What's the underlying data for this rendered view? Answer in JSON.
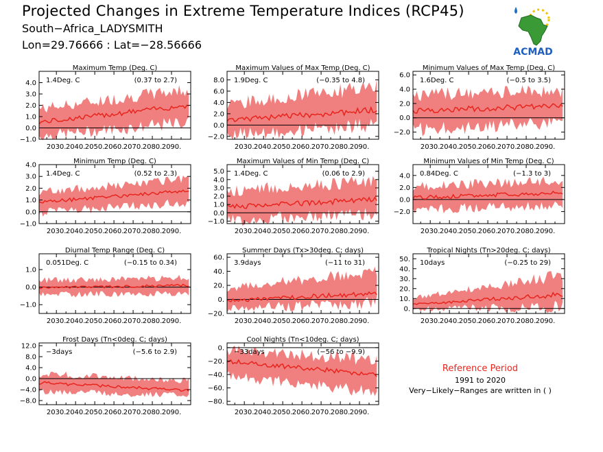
{
  "header": {
    "title": "Projected Changes in Extreme Temperature Indices (RCP45)",
    "location": "South−Africa_LADYSMITH",
    "coords": "Lon=29.76666 : Lat=−28.56666"
  },
  "logo": {
    "text": "ACMAD",
    "icon": "africa-map-logo"
  },
  "reference": {
    "title": "Reference Period",
    "period": "1991 to 2020",
    "note": "Very−Likely−Ranges are written in ( )"
  },
  "colors": {
    "band": "#f08080",
    "line": "#e8241c",
    "zero": "#000000",
    "title": "#e8241c"
  },
  "chart_data": [
    {
      "type": "area",
      "title": "Maximum Temp (Deg. C)",
      "mean_label": "1.4Deg. C",
      "range_label": "(0.37 to 2.7)",
      "xlim": [
        2021,
        2100
      ],
      "ylim": [
        -1,
        5
      ],
      "yticks": [
        "4.0",
        "3.0",
        "2.0",
        "1.0",
        "0.0",
        "−1.0"
      ],
      "ytick_values": [
        4,
        3,
        2,
        1,
        0,
        -1
      ],
      "xticks": [
        "2030.",
        "2040.",
        "2050.",
        "2060.",
        "2070.",
        "2080.",
        "2090."
      ],
      "series": {
        "start": 0.5,
        "end": 2.0,
        "low_start": -0.6,
        "low_end": 0.6,
        "high_start": 1.6,
        "high_end": 3.3
      }
    },
    {
      "type": "area",
      "title": "Maximum Values of Max Temp (Deg. C)",
      "mean_label": "1.9Deg. C",
      "range_label": "(−0.35 to 4.8)",
      "xlim": [
        2021,
        2100
      ],
      "ylim": [
        -2.5,
        9.5
      ],
      "yticks": [
        "8.0",
        "6.0",
        "4.0",
        "2.0",
        "0.0",
        "−2.0"
      ],
      "ytick_values": [
        8,
        6,
        4,
        2,
        0,
        -2
      ],
      "xticks": [
        "2030.",
        "2040.",
        "2050.",
        "2060.",
        "2070.",
        "2080.",
        "2090."
      ],
      "series": {
        "start": 0.8,
        "end": 2.7,
        "low_start": -1.5,
        "low_end": 0.2,
        "high_start": 3.5,
        "high_end": 6.5
      }
    },
    {
      "type": "area",
      "title": "Minimum Values of Max Temp (Deg. C)",
      "mean_label": "1.6Deg. C",
      "range_label": "(−0.5 to 3.5)",
      "xlim": [
        2021,
        2100
      ],
      "ylim": [
        -3,
        6.5
      ],
      "yticks": [
        "6.0",
        "4.0",
        "2.0",
        "0.0",
        "−2.0"
      ],
      "ytick_values": [
        6,
        4,
        2,
        0,
        -2
      ],
      "xticks": [
        "2030.",
        "2040.",
        "2050.",
        "2060.",
        "2070.",
        "2080.",
        "2090."
      ],
      "series": {
        "start": 1.0,
        "end": 1.7,
        "low_start": -1.5,
        "low_end": -0.5,
        "high_start": 3.0,
        "high_end": 3.6
      }
    },
    {
      "type": "area",
      "title": "Minimum Temp (Deg. C)",
      "mean_label": "1.4Deg. C",
      "range_label": "(0.52 to 2.3)",
      "xlim": [
        2021,
        2100
      ],
      "ylim": [
        -1,
        4
      ],
      "yticks": [
        "4.0",
        "3.0",
        "2.0",
        "1.0",
        "0.0",
        "−1.0"
      ],
      "ytick_values": [
        4,
        3,
        2,
        1,
        0,
        -1
      ],
      "xticks": [
        "2030.",
        "2040.",
        "2050.",
        "2060.",
        "2070.",
        "2080.",
        "2090."
      ],
      "series": {
        "start": 0.8,
        "end": 1.8,
        "low_start": 0.0,
        "low_end": 0.9,
        "high_start": 1.6,
        "high_end": 2.7
      }
    },
    {
      "type": "area",
      "title": "Maximum Values of Min Temp (Deg. C)",
      "mean_label": "1.4Deg. C",
      "range_label": "(0.06 to 2.9)",
      "xlim": [
        2021,
        2100
      ],
      "ylim": [
        -1.3,
        5.8
      ],
      "yticks": [
        "5.0",
        "4.0",
        "3.0",
        "2.0",
        "1.0",
        "0.0",
        "−1.0"
      ],
      "ytick_values": [
        5,
        4,
        3,
        2,
        1,
        0,
        -1
      ],
      "xticks": [
        "2030.",
        "2040.",
        "2050.",
        "2060.",
        "2070.",
        "2080.",
        "2090."
      ],
      "series": {
        "start": 0.7,
        "end": 1.6,
        "low_start": -0.8,
        "low_end": 0.1,
        "high_start": 2.5,
        "high_end": 3.7
      }
    },
    {
      "type": "area",
      "title": "Minimum Values of Min Temp (Deg. C)",
      "mean_label": "0.84Deg. C",
      "range_label": "(−1.3 to 3)",
      "xlim": [
        2021,
        2100
      ],
      "ylim": [
        -4,
        5.8
      ],
      "yticks": [
        "4.0",
        "2.0",
        "0.0",
        "−2.0"
      ],
      "ytick_values": [
        4,
        2,
        0,
        -2
      ],
      "xticks": [
        "2030.",
        "2040.",
        "2050.",
        "2060.",
        "2070.",
        "2080.",
        "2090."
      ],
      "series": {
        "start": 0.3,
        "end": 1.1,
        "low_start": -1.5,
        "low_end": -0.8,
        "high_start": 2.0,
        "high_end": 3.0
      }
    },
    {
      "type": "area",
      "title": "Diurnal Temp Range (Deg. C)",
      "mean_label": "0.051Deg. C",
      "range_label": "(−0.15 to 0.34)",
      "xlim": [
        2021,
        2100
      ],
      "ylim": [
        -1.5,
        1.9
      ],
      "yticks": [
        "1.0",
        "0.0",
        "−1.0"
      ],
      "ytick_values": [
        1,
        0,
        -1
      ],
      "xticks": [
        "2030.",
        "2040.",
        "2050.",
        "2060.",
        "2070.",
        "2080.",
        "2090."
      ],
      "series": {
        "start": -0.05,
        "end": 0.1,
        "low_start": -0.4,
        "low_end": -0.3,
        "high_start": 0.35,
        "high_end": 0.5
      }
    },
    {
      "type": "area",
      "title": "Summer Days (Tx>30deg. C; days)",
      "mean_label": "3.9days",
      "range_label": "(−11 to 31)",
      "xlim": [
        2021,
        2100
      ],
      "ylim": [
        -20,
        65
      ],
      "yticks": [
        "60.",
        "40.",
        "20.",
        "0.",
        "−20."
      ],
      "ytick_values": [
        60,
        40,
        20,
        0,
        -20
      ],
      "xticks": [
        "2030.",
        "2040.",
        "2050.",
        "2060.",
        "2070.",
        "2080.",
        "2090."
      ],
      "series": {
        "start": -2,
        "end": 9,
        "low_start": -12,
        "low_end": -3,
        "high_start": 15,
        "high_end": 38
      }
    },
    {
      "type": "area",
      "title": "Tropical Nights (Tn>20deg. C; days)",
      "mean_label": "10days",
      "range_label": "(−0.25 to 29)",
      "xlim": [
        2021,
        2100
      ],
      "ylim": [
        -5,
        55
      ],
      "yticks": [
        "50.",
        "40.",
        "30.",
        "20.",
        "10.",
        "0."
      ],
      "ytick_values": [
        50,
        40,
        30,
        20,
        10,
        0
      ],
      "xticks": [
        "2030.",
        "2040.",
        "2050.",
        "2060.",
        "2070.",
        "2080.",
        "2090."
      ],
      "series": {
        "start": 4,
        "end": 14,
        "low_start": 0,
        "low_end": 3,
        "high_start": 10,
        "high_end": 32
      }
    },
    {
      "type": "area",
      "title": "Frost Days (Tn<0deg. C; days)",
      "mean_label": "−3days",
      "range_label": "(−5.6 to 2.9)",
      "xlim": [
        2021,
        2100
      ],
      "ylim": [
        -9.5,
        13
      ],
      "yticks": [
        "12.0",
        "8.0",
        "4.0",
        "0.0",
        "−4.0",
        "−8.0"
      ],
      "ytick_values": [
        12,
        8,
        4,
        0,
        -4,
        -8
      ],
      "xticks": [
        "2030.",
        "2040.",
        "2050.",
        "2060.",
        "2070.",
        "2080.",
        "2090."
      ],
      "series": {
        "start": -1.5,
        "end": -4.3,
        "low_start": -4.5,
        "low_end": -6.0,
        "high_start": 1.5,
        "high_end": -1.0
      }
    },
    {
      "type": "area",
      "title": "Cool Nights (Tn<10deg. C; days)",
      "mean_label": "−33days",
      "range_label": "(−56 to −9.9)",
      "xlim": [
        2021,
        2100
      ],
      "ylim": [
        -85,
        7
      ],
      "yticks": [
        "0.",
        "−20.",
        "−40.",
        "−60.",
        "−80."
      ],
      "ytick_values": [
        0,
        -20,
        -40,
        -60,
        -80
      ],
      "xticks": [
        "2030.",
        "2040.",
        "2050.",
        "2060.",
        "2070.",
        "2080.",
        "2090."
      ],
      "series": {
        "start": -20,
        "end": -40,
        "low_start": -40,
        "low_end": -65,
        "high_start": -5,
        "high_end": -20
      }
    }
  ]
}
